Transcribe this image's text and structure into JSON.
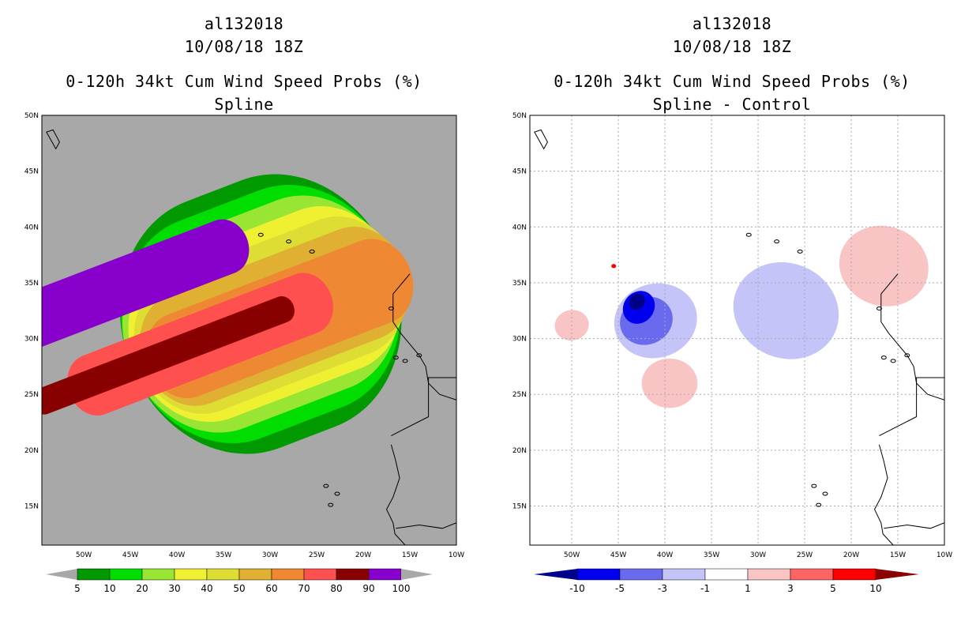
{
  "chart_data": [
    {
      "type": "heatmap",
      "title": [
        "al132018",
        "10/08/18 18Z",
        "0-120h 34kt Cum Wind Speed Probs (%)",
        "Spline"
      ],
      "x_ticks": [
        "50W",
        "45W",
        "40W",
        "35W",
        "30W",
        "25W",
        "20W",
        "15W",
        "10W"
      ],
      "y_ticks": [
        "50N",
        "45N",
        "40N",
        "35N",
        "30N",
        "25N",
        "20N",
        "15N"
      ],
      "xlim": [
        -54.5,
        -10
      ],
      "ylim": [
        11.5,
        50
      ],
      "grid": false,
      "background_color": "#a8a8a8",
      "colorbar": {
        "labels": [
          "5",
          "10",
          "20",
          "30",
          "40",
          "50",
          "60",
          "70",
          "80",
          "90",
          "100"
        ],
        "colors": [
          "#009900",
          "#00dd00",
          "#99e533",
          "#f0f033",
          "#dddd33",
          "#e0b033",
          "#ee8833",
          "#ff5050",
          "#880000",
          "#8800cc"
        ]
      },
      "contours": [
        {
          "level": 5,
          "color": "#009900",
          "c": [
            -31,
            32.2
          ],
          "r": 11.8,
          "a": 0.32
        },
        {
          "level": 10,
          "color": "#00dd00",
          "c": [
            -31,
            32.2
          ],
          "r": 10.4,
          "a": 0.32
        },
        {
          "level": 20,
          "color": "#99e533",
          "c": [
            -31,
            32.2
          ],
          "r": 9,
          "a": 0.32
        },
        {
          "level": 30,
          "color": "#f0f033",
          "c": [
            -30.5,
            32.2
          ],
          "r": 7.6,
          "a": 0.32
        },
        {
          "level": 40,
          "color": "#dddd33",
          "c": [
            -30,
            32.1
          ],
          "r": 6.4,
          "a": 0.32
        },
        {
          "level": 50,
          "color": "#e0b033",
          "c": [
            -29.5,
            32
          ],
          "r": 5.2,
          "a": 0.32
        },
        {
          "level": 60,
          "color": "#ee8833",
          "c": [
            -29,
            31.8
          ],
          "r": 3.9,
          "a": 0.3
        },
        {
          "level": 70,
          "color": "#ff5050",
          "c": [
            -37.5,
            29.5
          ],
          "r": 2.8,
          "a": 0.2
        },
        {
          "level": 80,
          "color": "#880000",
          "c": [
            -41.5,
            28.5
          ],
          "r": 1.2,
          "a": 0.3
        },
        {
          "level": 90,
          "color": "#8800cc",
          "c": [
            -46.5,
            34.5
          ],
          "r": 2.5,
          "a": 0
        }
      ]
    },
    {
      "type": "heatmap",
      "title": [
        "al132018",
        "10/08/18 18Z",
        "0-120h 34kt Cum Wind Speed Probs (%)",
        "Spline - Control"
      ],
      "x_ticks": [
        "50W",
        "45W",
        "40W",
        "35W",
        "30W",
        "25W",
        "20W",
        "15W",
        "10W"
      ],
      "y_ticks": [
        "50N",
        "45N",
        "40N",
        "35N",
        "30N",
        "25N",
        "20N",
        "15N"
      ],
      "xlim": [
        -54.5,
        -10
      ],
      "ylim": [
        11.5,
        50
      ],
      "grid": true,
      "background_color": "#ffffff",
      "colorbar": {
        "labels": [
          "-10",
          "-5",
          "-3",
          "-1",
          "1",
          "3",
          "5",
          "10"
        ],
        "colors": [
          "#00008b",
          "#0000ee",
          "#6a6aee",
          "#c4c4f8",
          "#ffffff",
          "#f8c4c4",
          "#ff6464",
          "#ff0000",
          "#8b0000"
        ]
      },
      "regions": [
        {
          "value": "-1",
          "color": "#c4c4f8",
          "c": [
            -41,
            31.6
          ],
          "r": 3.9,
          "a": -0.3
        },
        {
          "value": "-1",
          "color": "#c4c4f8",
          "c": [
            -27,
            32.5
          ],
          "r": 5,
          "a": 0.4
        },
        {
          "value": "1",
          "color": "#f8c4c4",
          "c": [
            -16.5,
            36.5
          ],
          "r": 4.2,
          "a": 0.3
        },
        {
          "value": "1",
          "color": "#f8c4c4",
          "c": [
            -39.5,
            26
          ],
          "r": 2.6,
          "a": 0
        },
        {
          "value": "1",
          "color": "#f8c4c4",
          "c": [
            -50,
            31.2
          ],
          "r": 1.6,
          "a": -0.2
        },
        {
          "value": "-3",
          "color": "#6a6aee",
          "c": [
            -42,
            31.6
          ],
          "r": 2.5,
          "a": -0.4
        },
        {
          "value": "-5",
          "color": "#0000ee",
          "c": [
            -42.8,
            32.8
          ],
          "r": 1.6,
          "a": -0.9
        },
        {
          "value": "-10",
          "color": "#00008b",
          "c": [
            -43,
            33.3
          ],
          "r": 0.8,
          "a": -0.9
        },
        {
          "value": "10",
          "color": "#ff0000",
          "c": [
            -45.5,
            36.5
          ],
          "r": 0.22,
          "a": 0
        }
      ]
    }
  ]
}
